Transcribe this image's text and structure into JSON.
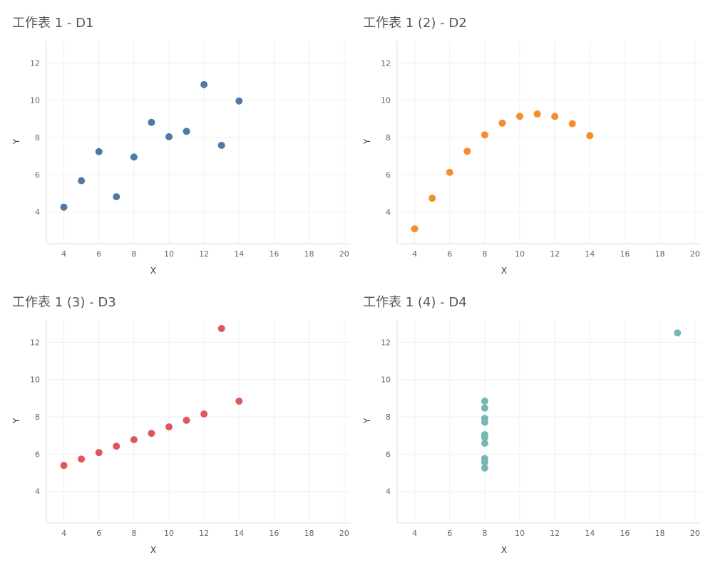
{
  "chart_data": [
    {
      "type": "scatter",
      "title": "工作表 1 - D1",
      "xlabel": "X",
      "ylabel": "Y",
      "xlim": [
        3,
        20.5
      ],
      "ylim": [
        2.3,
        13.2
      ],
      "xticks": [
        4,
        6,
        8,
        10,
        12,
        14,
        16,
        18,
        20
      ],
      "yticks": [
        4,
        6,
        8,
        10,
        12
      ],
      "color": "#4e79a7",
      "points": [
        {
          "x": 10,
          "y": 8.04
        },
        {
          "x": 8,
          "y": 6.95
        },
        {
          "x": 13,
          "y": 7.58
        },
        {
          "x": 9,
          "y": 8.81
        },
        {
          "x": 11,
          "y": 8.33
        },
        {
          "x": 14,
          "y": 9.96
        },
        {
          "x": 6,
          "y": 7.24
        },
        {
          "x": 4,
          "y": 4.26
        },
        {
          "x": 12,
          "y": 10.84
        },
        {
          "x": 7,
          "y": 4.82
        },
        {
          "x": 5,
          "y": 5.68
        }
      ]
    },
    {
      "type": "scatter",
      "title": "工作表 1 (2) - D2",
      "xlabel": "X",
      "ylabel": "Y",
      "xlim": [
        3,
        20.5
      ],
      "ylim": [
        2.3,
        13.2
      ],
      "xticks": [
        4,
        6,
        8,
        10,
        12,
        14,
        16,
        18,
        20
      ],
      "yticks": [
        4,
        6,
        8,
        10,
        12
      ],
      "color": "#f28e2b",
      "points": [
        {
          "x": 10,
          "y": 9.14
        },
        {
          "x": 8,
          "y": 8.14
        },
        {
          "x": 13,
          "y": 8.74
        },
        {
          "x": 9,
          "y": 8.77
        },
        {
          "x": 11,
          "y": 9.26
        },
        {
          "x": 14,
          "y": 8.1
        },
        {
          "x": 6,
          "y": 6.13
        },
        {
          "x": 4,
          "y": 3.1
        },
        {
          "x": 12,
          "y": 9.13
        },
        {
          "x": 7,
          "y": 7.26
        },
        {
          "x": 5,
          "y": 4.74
        }
      ]
    },
    {
      "type": "scatter",
      "title": "工作表 1 (3) - D3",
      "xlabel": "X",
      "ylabel": "Y",
      "xlim": [
        3,
        20.5
      ],
      "ylim": [
        2.3,
        13.2
      ],
      "xticks": [
        4,
        6,
        8,
        10,
        12,
        14,
        16,
        18,
        20
      ],
      "yticks": [
        4,
        6,
        8,
        10,
        12
      ],
      "color": "#e15759",
      "points": [
        {
          "x": 10,
          "y": 7.46
        },
        {
          "x": 8,
          "y": 6.77
        },
        {
          "x": 13,
          "y": 12.74
        },
        {
          "x": 9,
          "y": 7.11
        },
        {
          "x": 11,
          "y": 7.81
        },
        {
          "x": 14,
          "y": 8.84
        },
        {
          "x": 6,
          "y": 6.08
        },
        {
          "x": 4,
          "y": 5.39
        },
        {
          "x": 12,
          "y": 8.15
        },
        {
          "x": 7,
          "y": 6.42
        },
        {
          "x": 5,
          "y": 5.73
        }
      ]
    },
    {
      "type": "scatter",
      "title": "工作表 1 (4) - D4",
      "xlabel": "X",
      "ylabel": "Y",
      "xlim": [
        3,
        20.5
      ],
      "ylim": [
        2.3,
        13.2
      ],
      "xticks": [
        4,
        6,
        8,
        10,
        12,
        14,
        16,
        18,
        20
      ],
      "yticks": [
        4,
        6,
        8,
        10,
        12
      ],
      "color": "#76b7b2",
      "points": [
        {
          "x": 8,
          "y": 6.58
        },
        {
          "x": 8,
          "y": 5.76
        },
        {
          "x": 8,
          "y": 7.71
        },
        {
          "x": 8,
          "y": 8.84
        },
        {
          "x": 8,
          "y": 8.47
        },
        {
          "x": 8,
          "y": 7.04
        },
        {
          "x": 8,
          "y": 5.25
        },
        {
          "x": 19,
          "y": 12.5
        },
        {
          "x": 8,
          "y": 5.56
        },
        {
          "x": 8,
          "y": 7.91
        },
        {
          "x": 8,
          "y": 6.89
        }
      ]
    }
  ]
}
